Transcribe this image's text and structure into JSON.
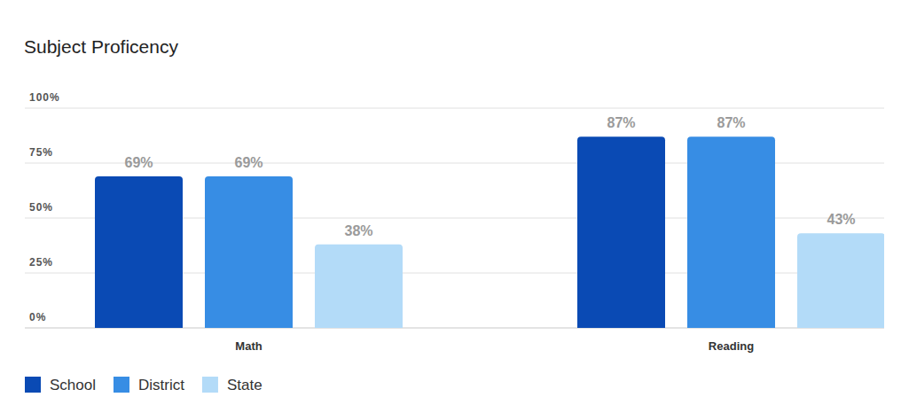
{
  "chart_data": {
    "type": "bar",
    "title": "Subject Proficency",
    "categories": [
      "Math",
      "Reading"
    ],
    "series": [
      {
        "name": "School",
        "color": "#0a4ab4",
        "values": [
          69,
          87
        ],
        "value_labels": [
          "69%",
          "87%"
        ]
      },
      {
        "name": "District",
        "color": "#378de4",
        "values": [
          69,
          87
        ],
        "value_labels": [
          "69%",
          "87%"
        ]
      },
      {
        "name": "State",
        "color": "#b3dbf8",
        "values": [
          38,
          43
        ],
        "value_labels": [
          "38%",
          "43%"
        ]
      }
    ],
    "ylim": [
      0,
      100
    ],
    "yticks": [
      {
        "value": 0,
        "label": "0%"
      },
      {
        "value": 25,
        "label": "25%"
      },
      {
        "value": 50,
        "label": "50%"
      },
      {
        "value": 75,
        "label": "75%"
      },
      {
        "value": 100,
        "label": "100%"
      }
    ],
    "grid": true,
    "legend": "bottom",
    "data_labels": true
  }
}
